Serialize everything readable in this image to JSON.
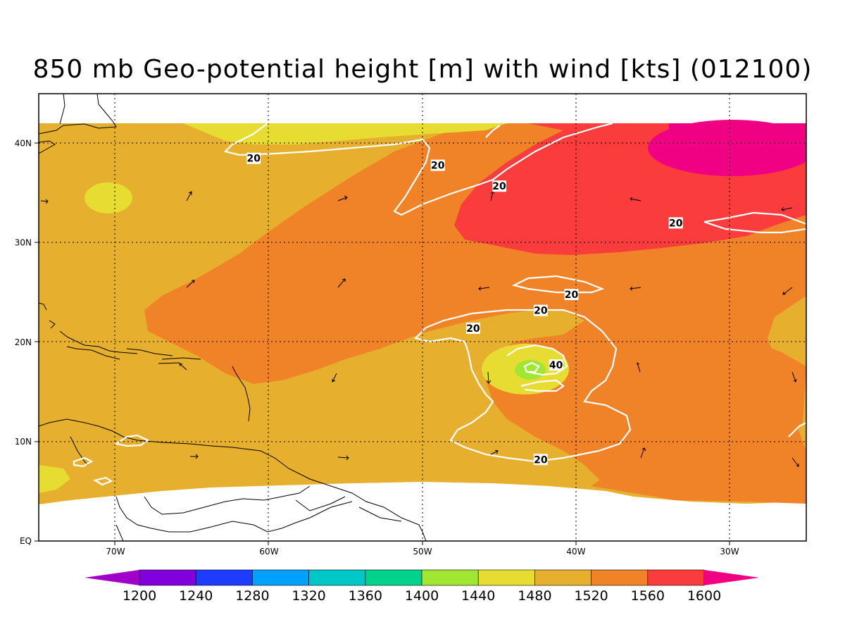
{
  "title": "850 mb Geo-potential height [m] with wind [kts] (012100)",
  "axes": {
    "lon_ticks": [
      {
        "lon": -70,
        "label": "70W"
      },
      {
        "lon": -60,
        "label": "60W"
      },
      {
        "lon": -50,
        "label": "50W"
      },
      {
        "lon": -40,
        "label": "40W"
      },
      {
        "lon": -30,
        "label": "30W"
      }
    ],
    "lat_ticks": [
      {
        "lat": 40,
        "label": "40N"
      },
      {
        "lat": 30,
        "label": "30N"
      },
      {
        "lat": 20,
        "label": "20N"
      },
      {
        "lat": 10,
        "label": "10N"
      },
      {
        "lat": 0,
        "label": "EQ"
      }
    ],
    "lon_range": [
      -75,
      -25
    ],
    "lat_range": [
      0,
      45
    ]
  },
  "colorbar": {
    "levels": [
      "1200",
      "1240",
      "1280",
      "1320",
      "1360",
      "1400",
      "1440",
      "1480",
      "1520",
      "1560",
      "1600"
    ],
    "colors": [
      "#a000c8",
      "#8200dc",
      "#1e3cff",
      "#00a0ff",
      "#00c8c8",
      "#00d28c",
      "#a0e632",
      "#e6dc32",
      "#e6af2d",
      "#f08228",
      "#fa3c3c",
      "#f00082"
    ]
  },
  "wind_contour_labels": [
    {
      "lon": -61,
      "lat": 38.5,
      "text": "20"
    },
    {
      "lon": -49,
      "lat": 37.8,
      "text": "20"
    },
    {
      "lon": -45,
      "lat": 35.7,
      "text": "20"
    },
    {
      "lon": -33.5,
      "lat": 32,
      "text": "20"
    },
    {
      "lon": -40.3,
      "lat": 24.8,
      "text": "20"
    },
    {
      "lon": -42.3,
      "lat": 23.2,
      "text": "20"
    },
    {
      "lon": -46.7,
      "lat": 21.4,
      "text": "20"
    },
    {
      "lon": -41.3,
      "lat": 17.7,
      "text": "40"
    },
    {
      "lon": -42.3,
      "lat": 8.2,
      "text": "20"
    }
  ],
  "chart_data": {
    "type": "heatmap",
    "variable": "850 mb geopotential height",
    "units": "m",
    "region": {
      "lon": [
        -75,
        -25
      ],
      "lat": [
        0,
        45
      ]
    },
    "features": [
      {
        "name": "high",
        "lon": -27,
        "lat": 40.5,
        "value_range": [
          1600,
          1640
        ]
      },
      {
        "name": "ridge",
        "lon": -38,
        "lat": 36,
        "value_range": [
          1560,
          1600
        ]
      },
      {
        "name": "low",
        "lon": -43,
        "lat": 17,
        "value_range": [
          1400,
          1440
        ]
      },
      {
        "name": "low-ring",
        "lon": -43,
        "lat": 17,
        "value_range": [
          1440,
          1480
        ]
      },
      {
        "name": "local-min",
        "lon": -70,
        "lat": 34.5,
        "value_range": [
          1480,
          1520
        ]
      }
    ],
    "wind_isotachs_kts": [
      20,
      40
    ]
  }
}
